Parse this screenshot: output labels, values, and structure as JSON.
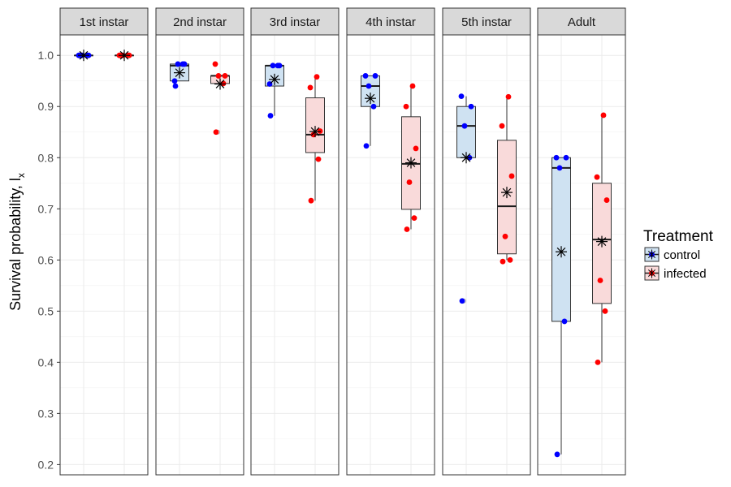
{
  "chart_data": {
    "type": "box",
    "facets": [
      "1st instar",
      "2nd instar",
      "3rd instar",
      "4th instar",
      "5th instar",
      "Adult"
    ],
    "ylabel": "Survival probability, l",
    "ylabel_subscript": "x",
    "ylim": [
      0.18,
      1.04
    ],
    "yticks": [
      0.2,
      0.3,
      0.4,
      0.5,
      0.6,
      0.7,
      0.8,
      0.9,
      1.0
    ],
    "ytick_labels": [
      "0.2",
      "0.3",
      "0.4",
      "0.5",
      "0.6",
      "0.7",
      "0.8",
      "0.9",
      "1.0"
    ],
    "legend": {
      "title": "Treatment",
      "placement": "right",
      "entries": [
        {
          "label": "control",
          "fill": "#cfe2f2",
          "color": "#0000ff"
        },
        {
          "label": "infected",
          "fill": "#f9dada",
          "color": "#ff0000"
        }
      ]
    },
    "series": [
      {
        "name": "control",
        "point_color": "#0000ff",
        "box_fill": "#cfe2f2",
        "facets": [
          {
            "facet": "1st instar",
            "box": [
              1.0,
              1.0,
              1.0,
              1.0,
              1.0
            ],
            "mean": 1.0,
            "points": [
              1.0,
              1.0,
              1.0,
              1.0,
              1.0
            ],
            "outliers": []
          },
          {
            "facet": "2nd instar",
            "box": [
              0.95,
              0.95,
              0.98,
              0.983,
              0.983
            ],
            "mean": 0.966,
            "points": [
              0.94,
              0.983,
              0.983,
              0.983,
              0.95
            ],
            "outliers": []
          },
          {
            "facet": "3rd instar",
            "box": [
              0.882,
              0.94,
              0.98,
              0.98,
              0.98
            ],
            "mean": 0.953,
            "points": [
              0.882,
              0.98,
              0.98,
              0.98,
              0.944
            ],
            "outliers": []
          },
          {
            "facet": "4th instar",
            "box": [
              0.823,
              0.9,
              0.94,
              0.96,
              0.96
            ],
            "mean": 0.916,
            "points": [
              0.823,
              0.9,
              0.94,
              0.96,
              0.96
            ],
            "outliers": []
          },
          {
            "facet": "5th instar",
            "box": [
              0.8,
              0.8,
              0.862,
              0.9,
              0.92
            ],
            "mean": 0.8,
            "points": [
              0.52,
              0.8,
              0.862,
              0.9,
              0.92
            ],
            "outliers": [
              0.52
            ]
          },
          {
            "facet": "Adult",
            "box": [
              0.22,
              0.48,
              0.78,
              0.8,
              0.8
            ],
            "mean": 0.616,
            "points": [
              0.22,
              0.48,
              0.78,
              0.8,
              0.8
            ],
            "outliers": []
          }
        ]
      },
      {
        "name": "infected",
        "point_color": "#ff0000",
        "box_fill": "#f9dada",
        "facets": [
          {
            "facet": "1st instar",
            "box": [
              1.0,
              1.0,
              1.0,
              1.0,
              1.0
            ],
            "mean": 1.0,
            "points": [
              1.0,
              1.0,
              1.0,
              1.0,
              1.0
            ],
            "outliers": []
          },
          {
            "facet": "2nd instar",
            "box": [
              0.94,
              0.945,
              0.96,
              0.96,
              0.96
            ],
            "mean": 0.944,
            "points": [
              0.85,
              0.945,
              0.96,
              0.96,
              0.983
            ],
            "outliers": [
              0.85
            ]
          },
          {
            "facet": "3rd instar",
            "box": [
              0.716,
              0.81,
              0.845,
              0.917,
              0.958
            ],
            "mean": 0.851,
            "points": [
              0.716,
              0.797,
              0.845,
              0.852,
              0.937,
              0.958
            ],
            "outliers": []
          },
          {
            "facet": "4th instar",
            "box": [
              0.66,
              0.699,
              0.788,
              0.88,
              0.94
            ],
            "mean": 0.79,
            "points": [
              0.66,
              0.682,
              0.752,
              0.818,
              0.9,
              0.94
            ],
            "outliers": []
          },
          {
            "facet": "5th instar",
            "box": [
              0.6,
              0.612,
              0.705,
              0.834,
              0.919
            ],
            "mean": 0.732,
            "points": [
              0.597,
              0.6,
              0.646,
              0.764,
              0.862,
              0.919
            ],
            "outliers": []
          },
          {
            "facet": "Adult",
            "box": [
              0.4,
              0.515,
              0.64,
              0.75,
              0.883
            ],
            "mean": 0.636,
            "points": [
              0.4,
              0.5,
              0.56,
              0.717,
              0.762,
              0.883
            ],
            "outliers": []
          }
        ]
      }
    ]
  }
}
